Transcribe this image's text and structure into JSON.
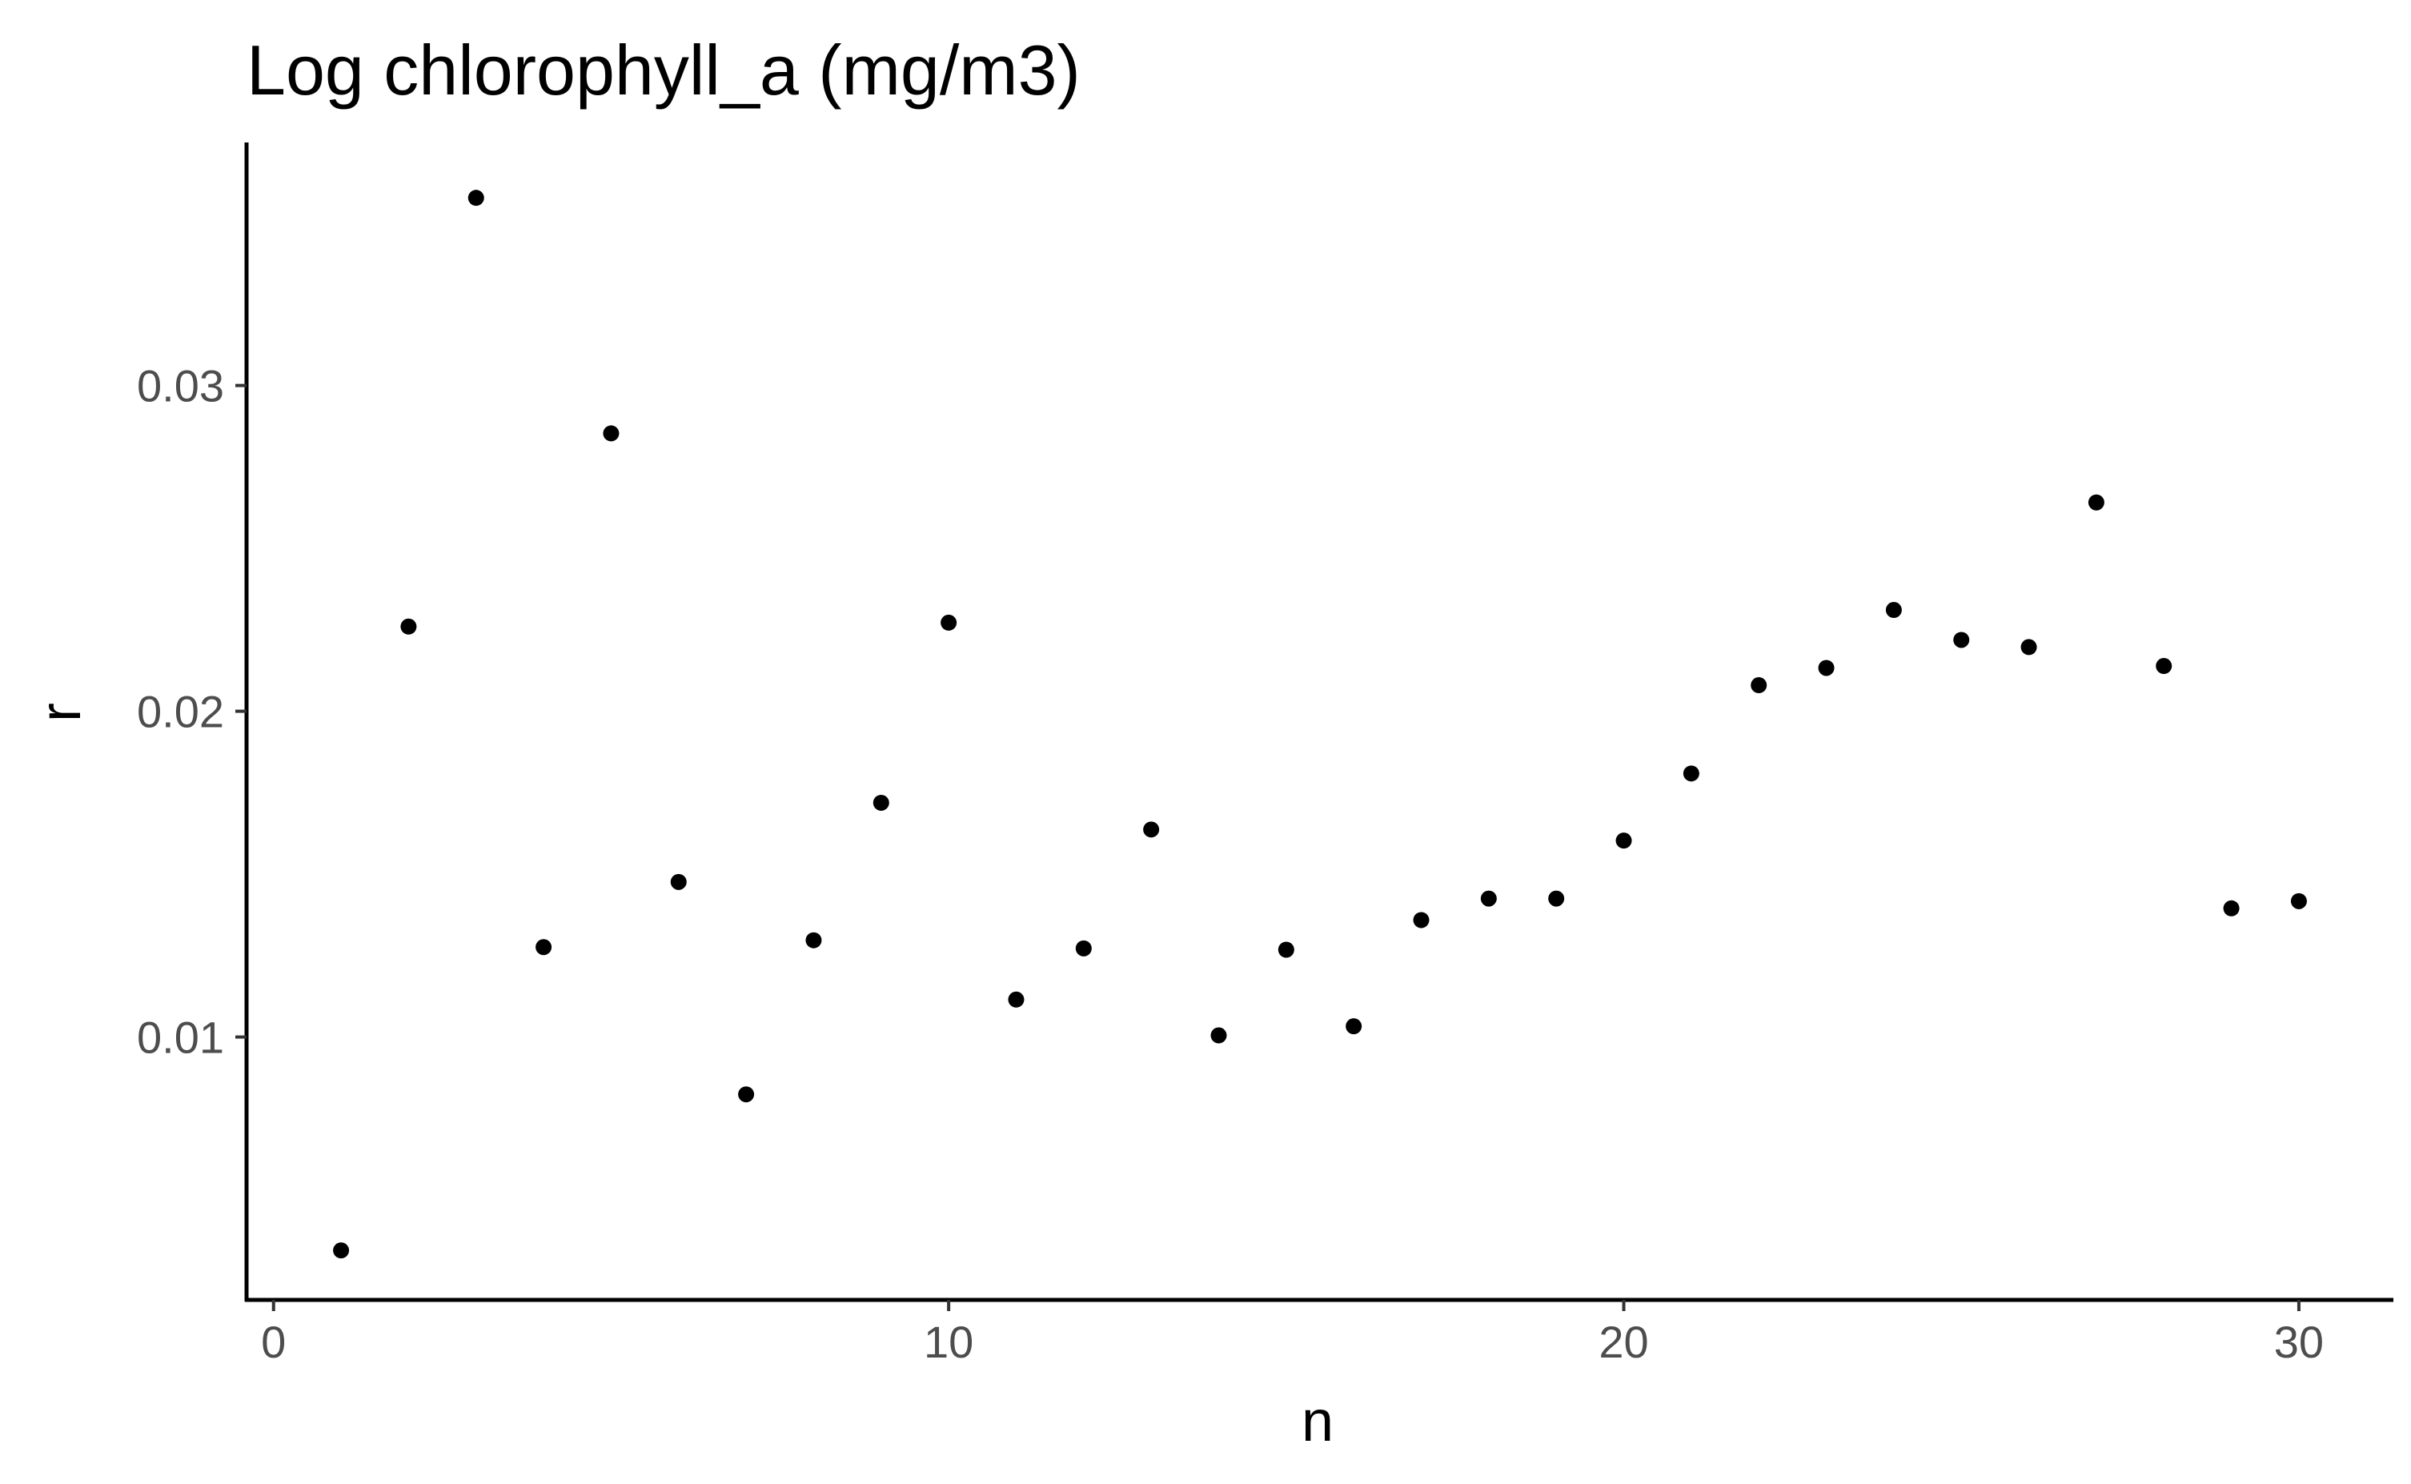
{
  "chart_data": {
    "type": "scatter",
    "title": "Log chlorophyll_a (mg/m3)",
    "xlabel": "n",
    "ylabel": "r",
    "xlim": [
      -0.4,
      31.4
    ],
    "ylim": [
      0.00193,
      0.03746
    ],
    "xticks": [
      0,
      10,
      20,
      30
    ],
    "yticks": [
      0.01,
      0.02,
      0.03
    ],
    "ytick_labels": [
      "0.01",
      "0.02",
      "0.03"
    ],
    "grid": false,
    "legend": "none",
    "point_color": "#000000",
    "x": [
      1,
      2,
      3,
      4,
      5,
      6,
      7,
      8,
      9,
      10,
      11,
      12,
      13,
      14,
      15,
      16,
      17,
      18,
      19,
      20,
      21,
      22,
      23,
      24,
      25,
      26,
      27,
      28,
      29,
      30
    ],
    "y": [
      0.00345,
      0.0226,
      0.03576,
      0.01276,
      0.02853,
      0.01476,
      0.00824,
      0.01297,
      0.01719,
      0.02272,
      0.01115,
      0.01272,
      0.01637,
      0.01005,
      0.01268,
      0.01033,
      0.01359,
      0.01425,
      0.01425,
      0.01603,
      0.01809,
      0.0208,
      0.02133,
      0.02311,
      0.02219,
      0.02197,
      0.02641,
      0.02139,
      0.01395,
      0.01417
    ]
  }
}
